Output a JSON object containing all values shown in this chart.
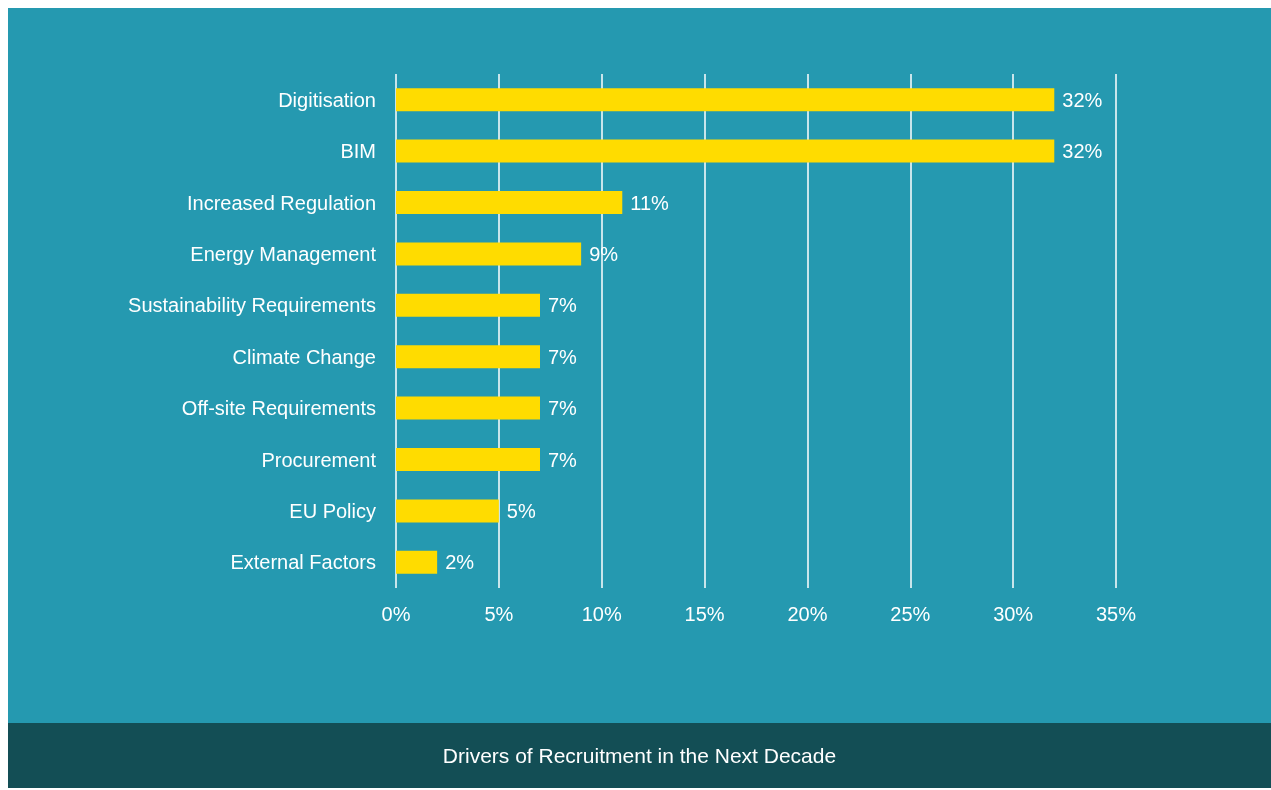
{
  "chart_data": {
    "type": "bar",
    "orientation": "horizontal",
    "title": "Drivers of Recruitment in the Next Decade",
    "categories": [
      "Digitisation",
      "BIM",
      "Increased Regulation",
      "Energy Management",
      "Sustainability Requirements",
      "Climate Change",
      "Off-site Requirements",
      "Procurement",
      "EU Policy",
      "External Factors"
    ],
    "values": [
      32,
      32,
      11,
      9,
      7,
      7,
      7,
      7,
      5,
      2
    ],
    "value_labels": [
      "32%",
      "32%",
      "11%",
      "9%",
      "7%",
      "7%",
      "7%",
      "7%",
      "5%",
      "2%"
    ],
    "color": "#ffdc00",
    "xlim": [
      0,
      35
    ],
    "xticks": [
      {
        "value": 0,
        "label": "0%"
      },
      {
        "value": 5,
        "label": "5%"
      },
      {
        "value": 10,
        "label": "10%"
      },
      {
        "value": 15,
        "label": "15%"
      },
      {
        "value": 20,
        "label": "20%"
      },
      {
        "value": 25,
        "label": "25%"
      },
      {
        "value": 30,
        "label": "30%"
      },
      {
        "value": 35,
        "label": "35%"
      }
    ],
    "grid": "x"
  }
}
